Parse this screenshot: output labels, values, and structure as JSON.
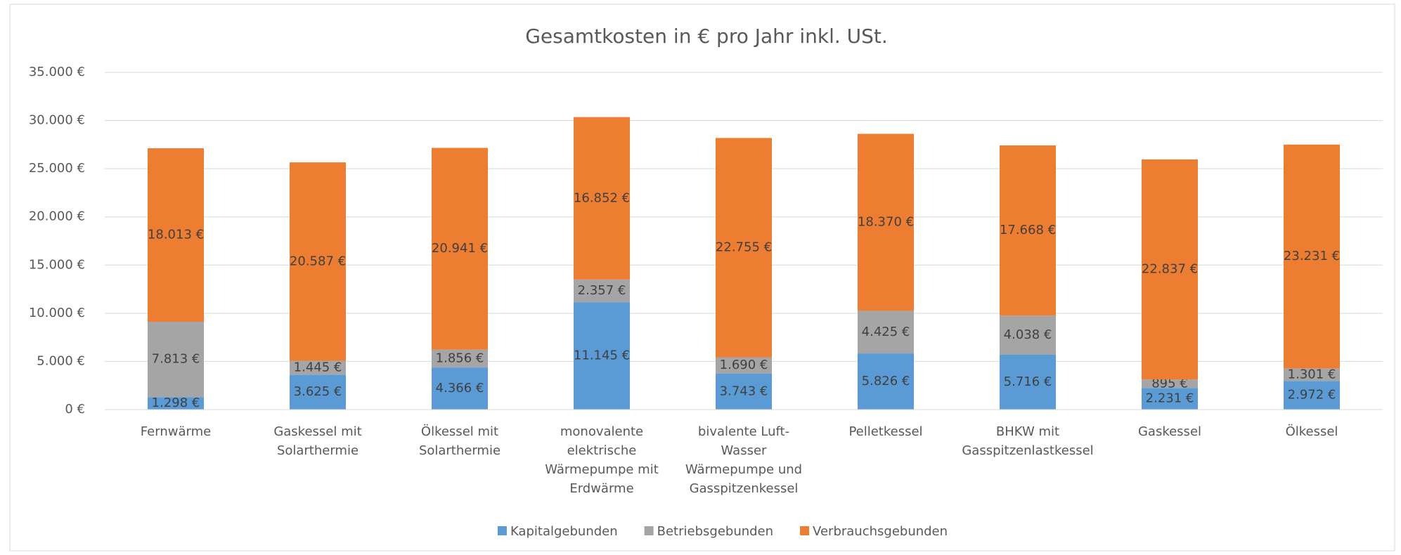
{
  "chart_data": {
    "type": "stacked_bar",
    "title": "Gesamtkosten in € pro Jahr inkl. USt.",
    "categories": [
      "Fernwärme",
      "Gaskessel mit Solarthermie",
      "Ölkessel mit Solarthermie",
      "monovalente elektrische Wärmepumpe mit Erdwärme",
      "bivalente Luft-Wasser Wärmepumpe und Gasspitzenkessel",
      "Pelletkessel",
      "BHKW mit Gasspitzenlastkessel",
      "Gaskessel",
      "Ölkessel"
    ],
    "series": [
      {
        "name": "Kapitalgebunden",
        "color": "#5b9bd5",
        "values": [
          1298,
          3625,
          4366,
          11145,
          3743,
          5826,
          5716,
          2231,
          2972
        ],
        "value_labels": [
          "1.298 €",
          "3.625 €",
          "4.366 €",
          "11.145 €",
          "3.743 €",
          "5.826 €",
          "5.716 €",
          "2.231 €",
          "2.972 €"
        ]
      },
      {
        "name": "Betriebsgebunden",
        "color": "#a5a5a5",
        "values": [
          7813,
          1445,
          1856,
          2357,
          1690,
          4425,
          4038,
          895,
          1301
        ],
        "value_labels": [
          "7.813 €",
          "1.445 €",
          "1.856 €",
          "2.357 €",
          "1.690 €",
          "4.425 €",
          "4.038 €",
          "895 €",
          "1.301 €"
        ]
      },
      {
        "name": "Verbrauchsgebunden",
        "color": "#ed7d31",
        "values": [
          18013,
          20587,
          20941,
          16852,
          22755,
          18370,
          17668,
          22837,
          23231
        ],
        "value_labels": [
          "18.013 €",
          "20.587 €",
          "20.941 €",
          "16.852 €",
          "22.755 €",
          "18.370 €",
          "17.668 €",
          "22.837 €",
          "23.231 €"
        ]
      }
    ],
    "ylim": [
      0,
      35000
    ],
    "yticks": [
      {
        "value": 0,
        "label": "0 €"
      },
      {
        "value": 5000,
        "label": "5.000 €"
      },
      {
        "value": 10000,
        "label": "10.000 €"
      },
      {
        "value": 15000,
        "label": "15.000 €"
      },
      {
        "value": 20000,
        "label": "20.000 €"
      },
      {
        "value": 25000,
        "label": "25.000 €"
      },
      {
        "value": 30000,
        "label": "30.000 €"
      },
      {
        "value": 35000,
        "label": "35.000 €"
      }
    ],
    "grid": true,
    "legend": "bottom"
  }
}
